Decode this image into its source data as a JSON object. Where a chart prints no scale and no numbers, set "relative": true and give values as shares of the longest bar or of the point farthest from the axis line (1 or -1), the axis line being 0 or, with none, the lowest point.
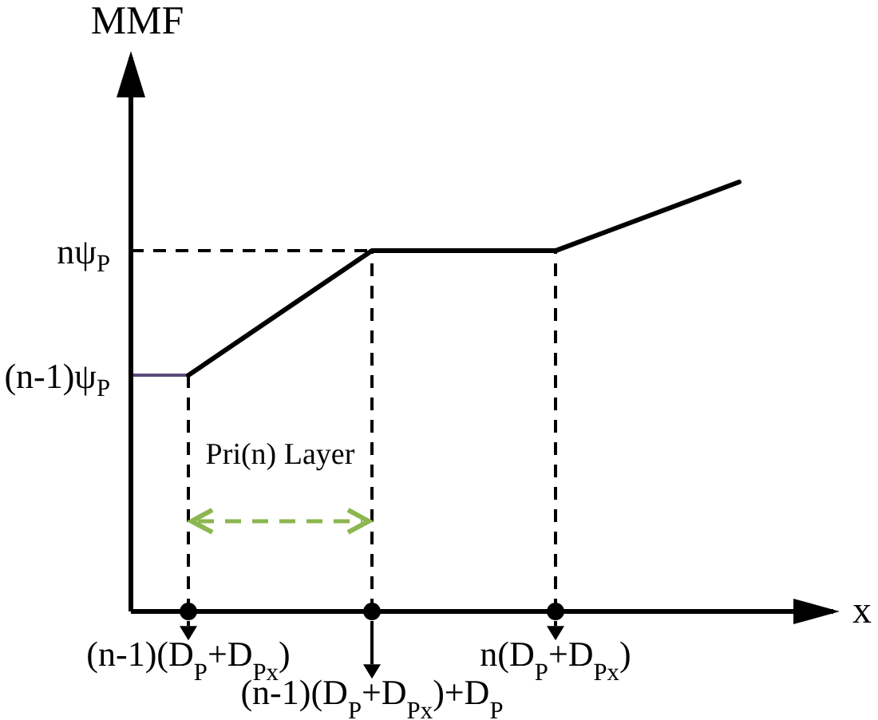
{
  "chart_data": {
    "type": "line",
    "xlabel": "x",
    "ylabel": "MMF",
    "relative": true,
    "line_style": "solid",
    "categories": [
      "(n-1)(D$_{P}$+D$_{Px}$)",
      "(n-1)(D$_{P}$+D$_{Px}$)+D$_{P}$",
      "n(D$_{P}$+D$_{Px}$)",
      null
    ],
    "series": [
      {
        "color": "#000000",
        "values": [
          0.55,
          0.84,
          0.84,
          1
        ]
      },
      {
        "type": "scatter",
        "color": "#000000",
        "marker": "circle",
        "values": [
          0,
          0,
          0,
          null
        ]
      }
    ],
    "ref_lines": [
      {
        "axis": "y",
        "value": 0.84,
        "label": "nψ$_{P}$",
        "line_style": "dashed",
        "color": "#000000"
      },
      {
        "axis": "y",
        "value": 0.55,
        "label": "(n-1)ψ$_{P}$",
        "line_style": "solid",
        "color": "#5b4a7a"
      },
      {
        "axis": "x",
        "value": "(n-1)(D$_{P}$+D$_{Px}$)",
        "line_style": "dashed",
        "color": "#000000"
      },
      {
        "axis": "x",
        "value": "(n-1)(D$_{P}$+D$_{Px}$)+D$_{P}$",
        "line_style": "dashed",
        "color": "#000000"
      },
      {
        "axis": "x",
        "value": "n(D$_{P}$+D$_{Px}$)",
        "line_style": "dashed",
        "color": "#000000"
      }
    ],
    "annotations": [
      "Pri(n) Layer"
    ]
  }
}
